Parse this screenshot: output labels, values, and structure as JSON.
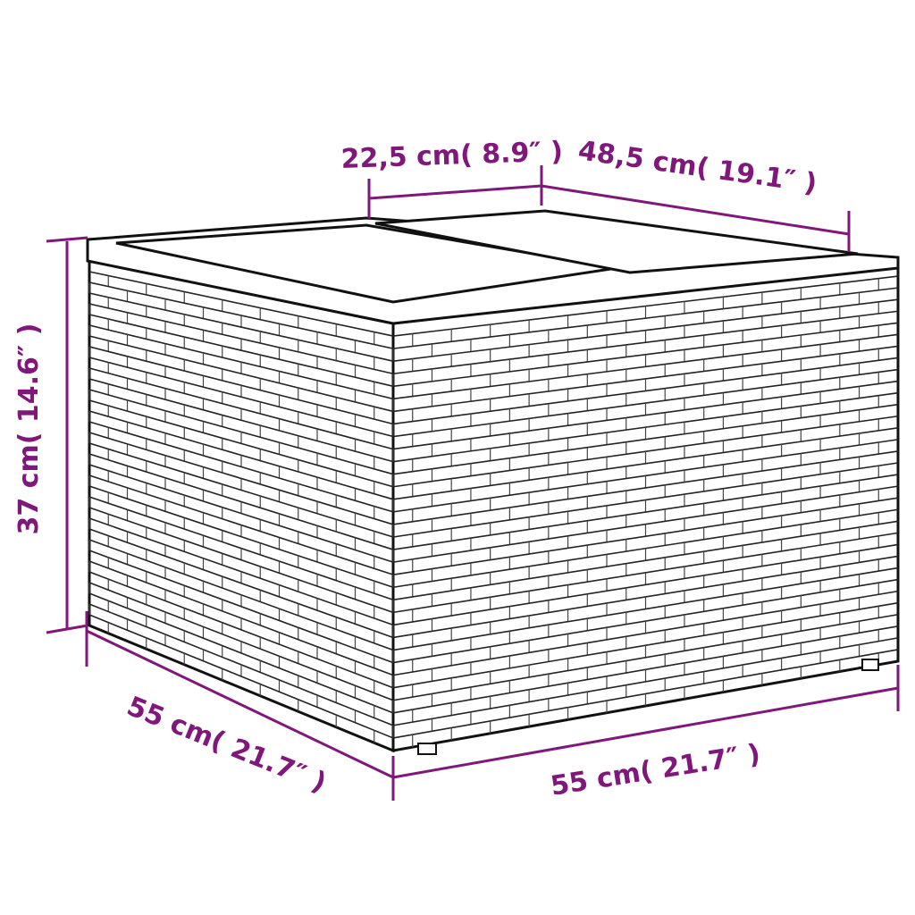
{
  "dimensions": {
    "top_depth": "22,5 cm( 8.9″ )",
    "top_width": "48,5 cm( 19.1″ )",
    "height": "37 cm( 14.6″ )",
    "depth": "55 cm( 21.7″ )",
    "width": "55 cm( 21.7″ )"
  },
  "colors": {
    "dimension": "#80177a",
    "outline": "#1a1a1a"
  }
}
